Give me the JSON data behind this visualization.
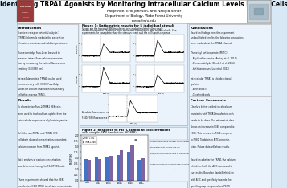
{
  "title": "Identifying TRPA1 Agonists by Monitoring Intracellular Calcium Levels in HEK Cells",
  "authors": "Paige Roe, Erik Johnson, and Nabyia Sehar",
  "department": "Department of Biology, Wake Forest University",
  "email": "roepa@wfu.edu",
  "bg_color": "#d8e8f4",
  "header_bg": "#ffffff",
  "panel_bg": "#eaf3fb",
  "title_fontsize": 5.5,
  "authors_fontsize": 3.2,
  "dept_fontsize": 3.0,
  "email_fontsize": 2.8,
  "title_color": "#000000",
  "body_text_color": "#111111",
  "bar_color_blue": "#4472c4",
  "bar_color_red": "#8064a2",
  "wfu_logo_color": "#8B1A1A",
  "section_title_fs": 3.0,
  "body_fs": 2.2,
  "trace_color": "#000000",
  "bar_categories": [
    "CTRL",
    "AITC\n10μM",
    "PEITC\n10μM",
    "PEITC\n25μM",
    "PEITC\n50μM",
    "NMF\n50μM"
  ],
  "blues": [
    0.95,
    1.02,
    1.05,
    1.12,
    1.28,
    0.92
  ],
  "reds": [
    0.9,
    0.95,
    1.1,
    1.35,
    1.6,
    0.98
  ]
}
